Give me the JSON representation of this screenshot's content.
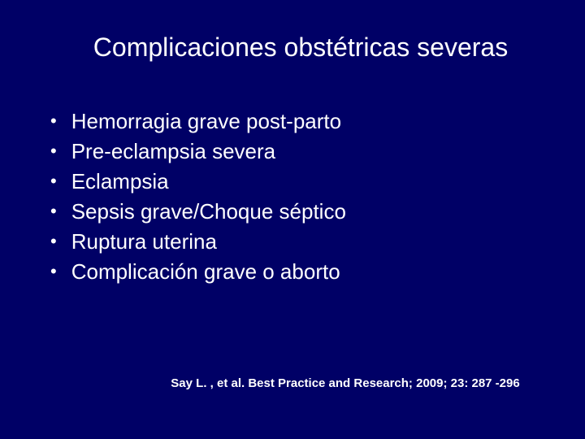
{
  "slide": {
    "title": "Complicaciones obstétricas severas",
    "bullets": [
      "Hemorragia grave post-parto",
      "Pre-eclampsia severa",
      "Eclampsia",
      "Sepsis grave/Choque séptico",
      "Ruptura uterina",
      "Complicación grave o aborto"
    ],
    "citation": "Say L. , et al. Best Practice and Research; 2009; 23: 287 -296",
    "colors": {
      "background": "#000066",
      "text": "#ffffff"
    },
    "typography": {
      "title_fontsize": 32,
      "bullet_fontsize": 26,
      "citation_fontsize": 15,
      "font_family": "Arial"
    }
  }
}
